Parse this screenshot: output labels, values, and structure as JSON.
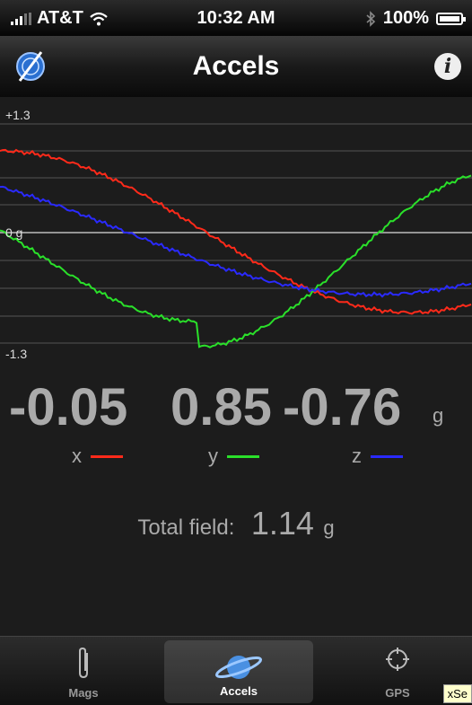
{
  "status": {
    "carrier": "AT&T",
    "time": "10:32 AM",
    "battery": "100%"
  },
  "nav": {
    "title": "Accels",
    "info_icon": "i"
  },
  "graph": {
    "max_label": "+1.3",
    "zero_label": "0 g",
    "min_label": "-1.3",
    "series_colors": {
      "x": "#ff2a1a",
      "y": "#2ae02a",
      "z": "#2a2aff"
    }
  },
  "readings": {
    "x": "-0.05",
    "y": "0.85",
    "z": "-0.76",
    "unit": "g",
    "x_label": "x",
    "y_label": "y",
    "z_label": "z"
  },
  "total": {
    "label": "Total field:",
    "value": "1.14",
    "unit": "g"
  },
  "tabs": [
    {
      "label": "Mags",
      "icon": "paperclip-icon"
    },
    {
      "label": "Accels",
      "icon": "planet-icon",
      "selected": true
    },
    {
      "label": "GPS",
      "icon": "crosshair-icon"
    }
  ],
  "tooltip": "xSe"
}
